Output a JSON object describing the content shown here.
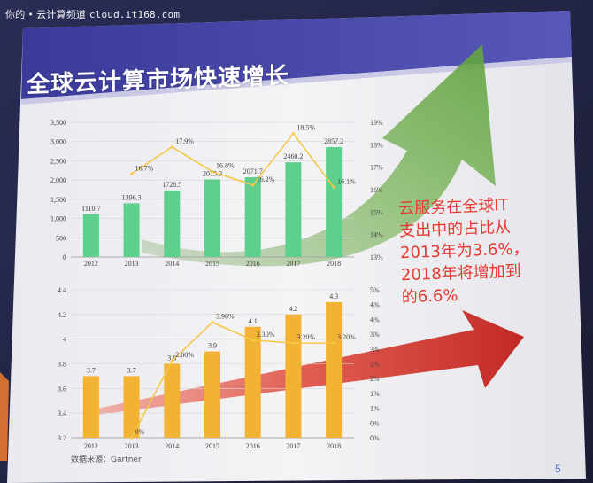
{
  "watermark": {
    "site_name": "你的",
    "section": "云计算频道",
    "domain": "cloud.it168.com"
  },
  "slide": {
    "title": "全球云计算市场快速增长",
    "callout_lines": [
      "云服务在全球IT",
      "支出中的占比从",
      "2013年为3.6%，",
      "2018年将增加到",
      "的6.6%"
    ],
    "source": "数据来源：Gartner",
    "page_number": "5"
  },
  "colors": {
    "title_bar": "#3f3fa0",
    "green_bar": "#5ecf8c",
    "orange_bar": "#f2b233",
    "line": "#f5c84a",
    "green_arrow": "#6fb04a",
    "red_arrow": "#d8352a",
    "callout_text": "#e5392f"
  },
  "chart_data": [
    {
      "type": "bar",
      "categories": [
        "2012",
        "2013",
        "2014",
        "2015",
        "2016",
        "2017",
        "2018"
      ],
      "series": [
        {
          "type": "bar",
          "values": [
            1110.7,
            1396.3,
            1728.5,
            2015.9,
            2071.7,
            2460.2,
            2857.2
          ],
          "labels": [
            "1110.7",
            "1396.3",
            "1728.5",
            "2015.9",
            "2071.7",
            "2460.2",
            "2857.2"
          ]
        },
        {
          "type": "line",
          "axis": "right",
          "values": [
            null,
            16.7,
            17.9,
            16.8,
            16.2,
            18.5,
            16.1
          ],
          "labels": [
            "",
            "16.7%",
            "17.9%",
            "16.8%",
            "16.2%",
            "18.5%",
            "16.1%"
          ]
        }
      ],
      "yticks": [
        "0",
        "500",
        "1,000",
        "1,500",
        "2,000",
        "2,500",
        "3,000",
        "3,500"
      ],
      "ylim": [
        0,
        3500
      ],
      "y2ticks": [
        "13%",
        "14%",
        "15%",
        "16%",
        "17%",
        "18%",
        "19%"
      ],
      "y2lim": [
        13,
        19
      ]
    },
    {
      "type": "bar",
      "categories": [
        "2012",
        "2013",
        "2014",
        "2015",
        "2016",
        "2017",
        "2018"
      ],
      "series": [
        {
          "type": "bar",
          "values": [
            3.7,
            3.7,
            3.8,
            3.9,
            4.1,
            4.2,
            4.3
          ],
          "labels": [
            "3.7",
            "3.7",
            "3.8",
            "3.9",
            "4.1",
            "4.2",
            "4.3"
          ]
        },
        {
          "type": "line",
          "axis": "right",
          "values": [
            null,
            0,
            2.6,
            3.9,
            3.3,
            3.2,
            3.2
          ],
          "labels": [
            "",
            "0%",
            "2.60%",
            "3.90%",
            "3.30%",
            "3.20%",
            "3.20%"
          ]
        }
      ],
      "yticks": [
        "3.2",
        "3.4",
        "3.6",
        "3.8",
        "4",
        "4.2",
        "4.4"
      ],
      "ylim": [
        3.2,
        4.4
      ],
      "y2ticks": [
        "0%",
        "0%",
        "1%",
        "1%",
        "2%",
        "2%",
        "3%",
        "3%",
        "4%",
        "4%",
        "5%"
      ],
      "y2lim": [
        0,
        5
      ]
    }
  ]
}
